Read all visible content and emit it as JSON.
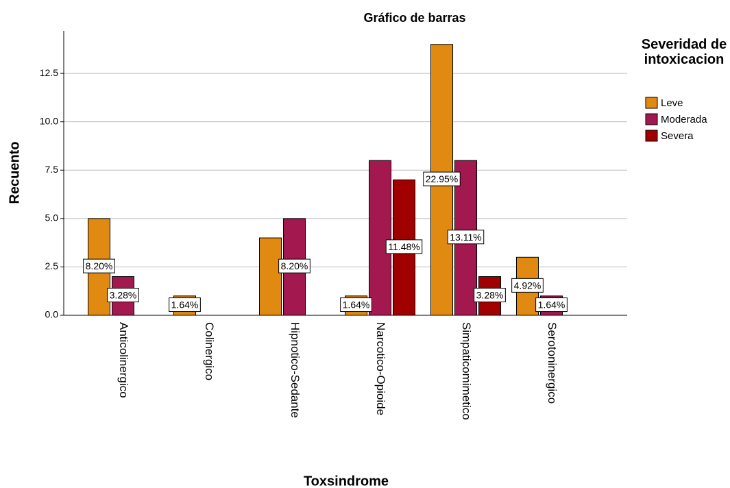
{
  "chart_data": {
    "type": "bar",
    "title": "Gráfico de barras",
    "x_label": "Toxsindrome",
    "y_label": "Recuento",
    "legend_title": "Severidad de intoxicacion",
    "legend": "right",
    "categories": [
      "Anticolinergico",
      "Colinergico",
      "Hipnotico-Sedante",
      "Narcotico-Opioide",
      "Simpaticomimetico",
      "Serotoninergico"
    ],
    "series": [
      {
        "name": "Leve",
        "color": "#e08a12",
        "values": [
          5,
          1,
          4,
          1,
          14,
          3
        ],
        "value_labels": [
          "8.20%",
          "1.64%",
          null,
          "1.64%",
          "22.95%",
          "4.92%"
        ]
      },
      {
        "name": "Moderada",
        "color": "#a3194f",
        "values": [
          2,
          null,
          5,
          8,
          8,
          1
        ],
        "value_labels": [
          "3.28%",
          null,
          "8.20%",
          null,
          "13.11%",
          "1.64%"
        ]
      },
      {
        "name": "Severa",
        "color": "#a00000",
        "values": [
          null,
          null,
          null,
          7,
          2,
          null
        ],
        "value_labels": [
          null,
          null,
          null,
          "11.48%",
          "3.28%",
          null
        ]
      }
    ],
    "ylim": [
      0,
      14.7
    ],
    "yticks": [
      {
        "value": 0,
        "label": "0.0"
      },
      2.5,
      {
        "value": 5,
        "label": "5.0"
      },
      7.5,
      {
        "value": 10,
        "label": "10.0"
      },
      12.5
    ],
    "grid": true
  }
}
